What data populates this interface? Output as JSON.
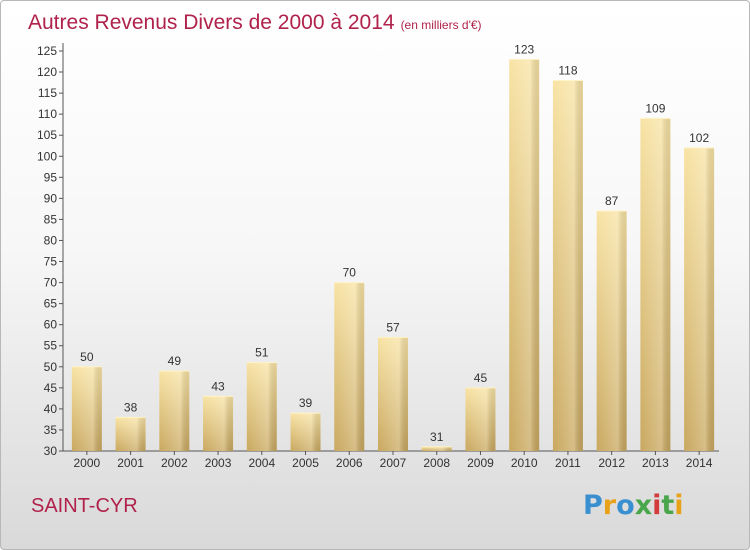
{
  "title": "Autres Revenus Divers de 2000 à 2014",
  "subtitle": "(en milliers d'€)",
  "place": "SAINT-CYR",
  "logo": {
    "text": "Proxiti",
    "colors": [
      "#3a8fd0",
      "#e8a21a",
      "#3a8fd0",
      "#4aa64a",
      "#d23c3c",
      "#4aa64a",
      "#e8a21a"
    ]
  },
  "colors": {
    "accent": "#b0224b",
    "bar_light": "#f8e3a4",
    "bar_dark": "#c9a85f",
    "axis": "#555555"
  },
  "chart_data": {
    "type": "bar",
    "categories": [
      "2000",
      "2001",
      "2002",
      "2003",
      "2004",
      "2005",
      "2006",
      "2007",
      "2008",
      "2009",
      "2010",
      "2011",
      "2012",
      "2013",
      "2014"
    ],
    "values": [
      50,
      38,
      49,
      43,
      51,
      39,
      70,
      57,
      31,
      45,
      123,
      118,
      87,
      109,
      102
    ],
    "ylim": [
      30,
      125
    ],
    "yticks": [
      30,
      35,
      40,
      45,
      50,
      55,
      60,
      65,
      70,
      75,
      80,
      85,
      90,
      95,
      100,
      105,
      110,
      115,
      120,
      125
    ],
    "xlabel": "",
    "ylabel": "",
    "grid": false
  }
}
